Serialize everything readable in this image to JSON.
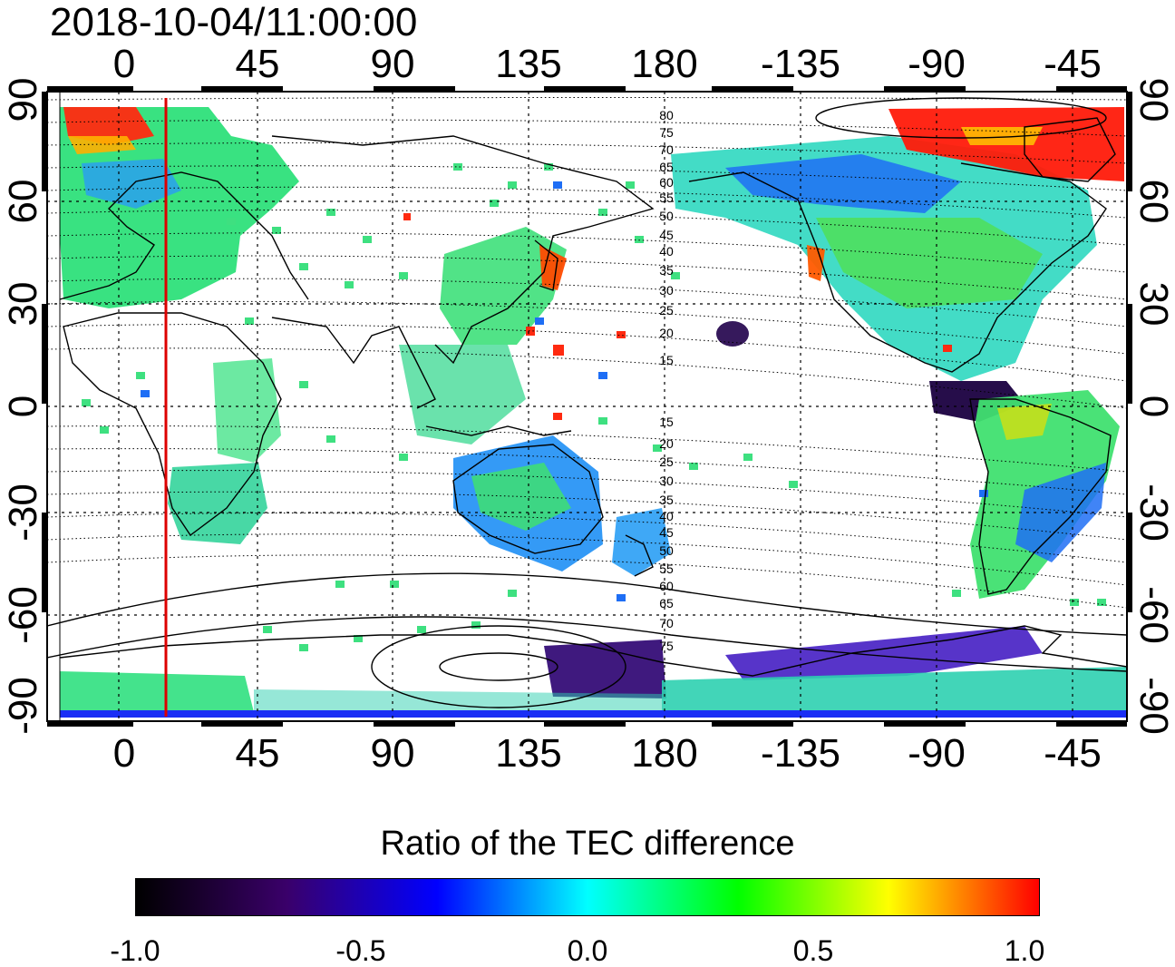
{
  "timestamp": "2018-10-04/11:00:00",
  "colorbar": {
    "title": "Ratio of the TEC difference",
    "min": -1.0,
    "max": 1.0,
    "tick_labels": [
      "-1.0",
      "-0.5",
      "0.0",
      "0.5",
      "1.0"
    ],
    "stops": [
      "#000000",
      "#3a006a",
      "#0000ff",
      "#00ffff",
      "#00ff00",
      "#ffff00",
      "#ff0000"
    ]
  },
  "axes": {
    "top_lon_labels": [
      "0",
      "45",
      "90",
      "135",
      "180",
      "-135",
      "-90",
      "-45"
    ],
    "bottom_lon_labels": [
      "0",
      "45",
      "90",
      "135",
      "180",
      "-135",
      "-90",
      "-45"
    ],
    "left_lat_labels": [
      "90",
      "60",
      "30",
      "0",
      "-30",
      "-60",
      "-90"
    ],
    "right_lat_labels": [
      "90",
      "60",
      "30",
      "0",
      "-30",
      "-60",
      "-90"
    ]
  },
  "contour_labels_north": [
    "80",
    "75",
    "70",
    "65",
    "60",
    "55",
    "50",
    "45",
    "40",
    "35",
    "30",
    "25",
    "20",
    "15"
  ],
  "contour_labels_south": [
    "15",
    "20",
    "25",
    "30",
    "35",
    "40",
    "45",
    "50",
    "55",
    "60",
    "65",
    "70",
    "75"
  ],
  "terminator_marker": {
    "color": "#dd0000"
  },
  "colors": {
    "grid": "#000000",
    "coast": "#000000",
    "terminator": "#dd0000"
  }
}
